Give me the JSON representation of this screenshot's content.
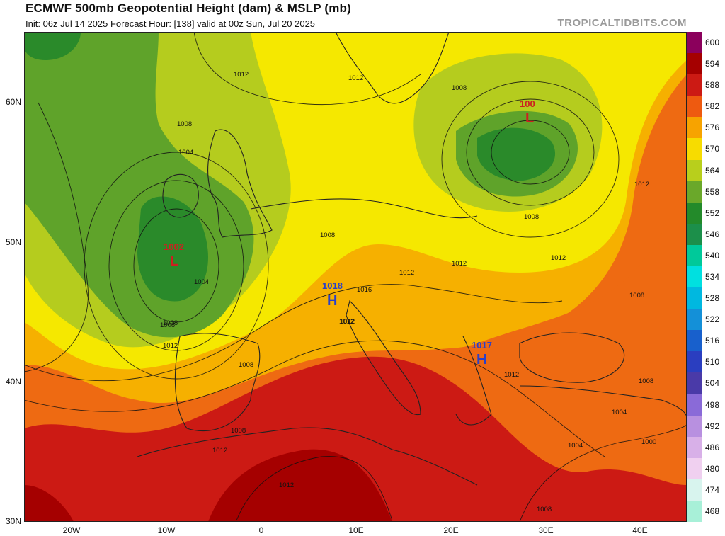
{
  "header": {
    "title": "ECMWF 500mb Geopotential Height (dam) & MSLP (mb)",
    "subtitle": "Init: 06z Jul 14 2025   Forecast Hour: [138]   valid at 00z Sun, Jul 20 2025",
    "brand": "TROPICALTIDBITS.COM"
  },
  "lat_labels": [
    "60N",
    "50N",
    "40N",
    "30N"
  ],
  "lon_labels": [
    "20W",
    "10W",
    "0",
    "10E",
    "20E",
    "30E",
    "40E"
  ],
  "colorbar": {
    "labels": [
      "600",
      "594",
      "588",
      "582",
      "576",
      "570",
      "564",
      "558",
      "552",
      "546",
      "540",
      "534",
      "528",
      "522",
      "516",
      "510",
      "504",
      "498",
      "492",
      "486",
      "480",
      "474",
      "468"
    ],
    "colors": [
      "#8b005c",
      "#a50000",
      "#cc1a14",
      "#ee5a10",
      "#f7a300",
      "#f7dc00",
      "#b8cf1c",
      "#6aa82a",
      "#238a2a",
      "#1c8f4a",
      "#00c99a",
      "#00e0e0",
      "#00b8e0",
      "#1490d8",
      "#1860cc",
      "#2a3ec0",
      "#4a3aa8",
      "#8a6ad8",
      "#b890e0",
      "#d8b0e8",
      "#f0d0f0",
      "#d8f4ee",
      "#a8f0d8"
    ]
  },
  "pressure_centers": [
    {
      "kind": "L",
      "value": "1002",
      "color": "#cc2020"
    },
    {
      "kind": "L",
      "value": "100",
      "color": "#cc2020"
    },
    {
      "kind": "H",
      "value": "1018",
      "color": "#2a40c8"
    },
    {
      "kind": "H",
      "value": "1017",
      "color": "#2a40c8"
    }
  ],
  "isobar_labels": [
    "1012",
    "1008",
    "1004",
    "1008",
    "1004",
    "1008",
    "1012",
    "1008",
    "1012",
    "1012",
    "1012",
    "1016",
    "1012",
    "1012",
    "1008",
    "1008",
    "1012",
    "1008",
    "1008",
    "1012",
    "1008",
    "1004",
    "1000",
    "1004",
    "1012",
    "1008",
    "1012",
    "1012",
    "1008"
  ]
}
